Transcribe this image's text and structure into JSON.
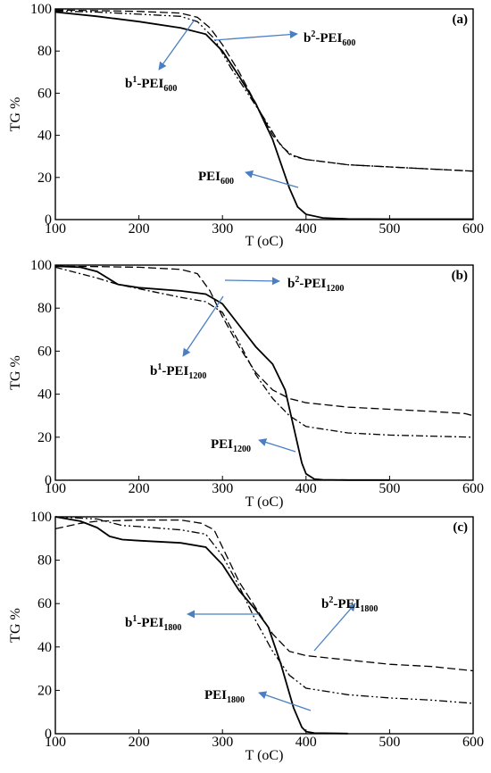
{
  "chart_data": [
    {
      "type": "line",
      "panel_label": "(a)",
      "xlabel": "T (oC)",
      "ylabel": "TG %",
      "xlim": [
        100,
        600
      ],
      "ylim": [
        0,
        100
      ],
      "xticks": [
        100,
        200,
        300,
        400,
        500,
        600
      ],
      "yticks": [
        0,
        20,
        40,
        60,
        80,
        100
      ],
      "series": [
        {
          "name": "PEI600",
          "style": "solid",
          "x": [
            100,
            150,
            200,
            250,
            280,
            300,
            320,
            340,
            360,
            380,
            390,
            400,
            420,
            450,
            500,
            600
          ],
          "y": [
            98.5,
            96.5,
            94,
            91,
            88,
            80,
            68,
            55,
            38,
            15,
            6,
            2.5,
            0.8,
            0.3,
            0.2,
            0.2
          ]
        },
        {
          "name": "b1-PEI600",
          "style": "dashdotdot",
          "x": [
            100,
            150,
            200,
            250,
            270,
            290,
            310,
            330,
            350,
            370,
            385,
            400,
            450,
            500,
            550,
            600
          ],
          "y": [
            99,
            98.5,
            97.5,
            96.5,
            94,
            86,
            72,
            60,
            48,
            35,
            30,
            28.5,
            26,
            25,
            24,
            23
          ]
        },
        {
          "name": "b2-PEI600",
          "style": "dashed",
          "x": [
            100,
            150,
            200,
            250,
            270,
            285,
            300,
            320,
            340,
            360,
            380,
            400,
            450,
            500,
            550,
            600
          ],
          "y": [
            99.5,
            99.2,
            98.8,
            98,
            96,
            91,
            83,
            70,
            55,
            40,
            31,
            28.5,
            26,
            25,
            24,
            23
          ]
        }
      ],
      "annotations": [
        {
          "id": "b2",
          "prefix": "b",
          "sup": "2",
          "mid": "-PEI",
          "sub": "600"
        },
        {
          "id": "b1",
          "prefix": "b",
          "sup": "1",
          "mid": "-PEI",
          "sub": "600"
        },
        {
          "id": "pei",
          "prefix": "",
          "sup": "",
          "mid": "PEI",
          "sub": "600"
        }
      ]
    },
    {
      "type": "line",
      "panel_label": "(b)",
      "xlabel": "T (oC)",
      "ylabel": "TG %",
      "xlim": [
        100,
        600
      ],
      "ylim": [
        0,
        100
      ],
      "xticks": [
        100,
        200,
        300,
        400,
        500,
        600
      ],
      "yticks": [
        0,
        20,
        40,
        60,
        80,
        100
      ],
      "series": [
        {
          "name": "PEI1200",
          "style": "solid",
          "x": [
            100,
            130,
            150,
            175,
            200,
            250,
            280,
            300,
            320,
            340,
            360,
            375,
            385,
            395,
            400,
            410,
            420,
            450,
            500
          ],
          "y": [
            99.5,
            99,
            97,
            91,
            89.5,
            88,
            86.5,
            82,
            72,
            62,
            54,
            42,
            25,
            8,
            3,
            0.5,
            0.2,
            0.1,
            0.1
          ]
        },
        {
          "name": "b1-PEI1200",
          "style": "dashdot",
          "x": [
            100,
            150,
            175,
            200,
            250,
            280,
            300,
            320,
            340,
            360,
            380,
            400,
            450,
            500,
            550,
            600
          ],
          "y": [
            99,
            94,
            91,
            89,
            85,
            83,
            78,
            64,
            49,
            38,
            30,
            25,
            22,
            21,
            20.5,
            20
          ]
        },
        {
          "name": "b2-PEI1200",
          "style": "dashed",
          "x": [
            100,
            150,
            200,
            250,
            270,
            285,
            300,
            320,
            340,
            360,
            380,
            400,
            450,
            500,
            550,
            590,
            600
          ],
          "y": [
            99.5,
            99.3,
            99,
            98,
            96,
            88,
            76,
            62,
            50,
            42,
            38,
            36,
            34,
            33,
            32,
            31,
            30
          ]
        }
      ],
      "annotations": [
        {
          "id": "b2",
          "prefix": "b",
          "sup": "2",
          "mid": "-PEI",
          "sub": "1200"
        },
        {
          "id": "b1",
          "prefix": "b",
          "sup": "1",
          "mid": "-PEI",
          "sub": "1200"
        },
        {
          "id": "pei",
          "prefix": "",
          "sup": "",
          "mid": "PEI",
          "sub": "1200"
        }
      ]
    },
    {
      "type": "line",
      "panel_label": "(c)",
      "xlabel": "T (oC)",
      "ylabel": "TG %",
      "xlim": [
        100,
        600
      ],
      "ylim": [
        0,
        100
      ],
      "xticks": [
        100,
        200,
        300,
        400,
        500,
        600
      ],
      "yticks": [
        0,
        20,
        40,
        60,
        80,
        100
      ],
      "series": [
        {
          "name": "PEI1800",
          "style": "solid",
          "x": [
            100,
            130,
            150,
            165,
            180,
            200,
            250,
            280,
            300,
            320,
            340,
            355,
            370,
            385,
            395,
            400,
            410,
            450
          ],
          "y": [
            100,
            98,
            95,
            91,
            89.5,
            89,
            88,
            86,
            78,
            66,
            57,
            49,
            32,
            12,
            3,
            1,
            0.3,
            0.1
          ]
        },
        {
          "name": "b1-PEI1800",
          "style": "dashdotdot",
          "x": [
            100,
            150,
            180,
            200,
            250,
            280,
            300,
            320,
            340,
            360,
            380,
            400,
            450,
            500,
            550,
            600
          ],
          "y": [
            100,
            99,
            96,
            95.5,
            94,
            92,
            82,
            68,
            52,
            38,
            27,
            21,
            18,
            16.5,
            15.5,
            14
          ]
        },
        {
          "name": "b2-PEI1800",
          "style": "dashed",
          "x": [
            100,
            130,
            150,
            200,
            250,
            275,
            290,
            300,
            320,
            340,
            360,
            380,
            400,
            450,
            500,
            550,
            600
          ],
          "y": [
            94.5,
            97,
            98,
            98.5,
            98.5,
            97,
            94,
            86,
            70,
            58,
            46,
            38,
            36,
            34,
            32,
            31,
            29
          ]
        }
      ],
      "annotations": [
        {
          "id": "b2",
          "prefix": "b",
          "sup": "2",
          "mid": "-PEI",
          "sub": "1800"
        },
        {
          "id": "b1",
          "prefix": "b",
          "sup": "1",
          "mid": "-PEI",
          "sub": "1800"
        },
        {
          "id": "pei",
          "prefix": "",
          "sup": "",
          "mid": "PEI",
          "sub": "1800"
        }
      ]
    }
  ]
}
